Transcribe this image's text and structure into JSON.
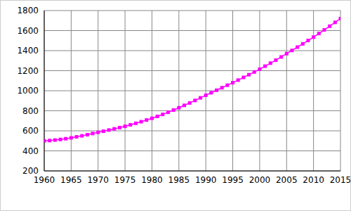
{
  "chart_data": {
    "type": "line",
    "x": [
      1960,
      1961,
      1962,
      1963,
      1964,
      1965,
      1966,
      1967,
      1968,
      1969,
      1970,
      1971,
      1972,
      1973,
      1974,
      1975,
      1976,
      1977,
      1978,
      1979,
      1980,
      1981,
      1982,
      1983,
      1984,
      1985,
      1986,
      1987,
      1988,
      1989,
      1990,
      1991,
      1992,
      1993,
      1994,
      1995,
      1996,
      1997,
      1998,
      1999,
      2000,
      2001,
      2002,
      2003,
      2004,
      2005,
      2006,
      2007,
      2008,
      2009,
      2010,
      2011,
      2012,
      2013,
      2014,
      2015
    ],
    "values": [
      500,
      503,
      508,
      514,
      521,
      530,
      540,
      550,
      561,
      573,
      585,
      596,
      608,
      620,
      632,
      645,
      660,
      675,
      691,
      708,
      725,
      744,
      764,
      785,
      807,
      830,
      854,
      878,
      903,
      929,
      955,
      980,
      1005,
      1030,
      1055,
      1080,
      1106,
      1133,
      1160,
      1187,
      1215,
      1245,
      1275,
      1305,
      1337,
      1370,
      1402,
      1435,
      1468,
      1501,
      1535,
      1571,
      1607,
      1644,
      1682,
      1720
    ],
    "color": "#ff00ff",
    "marker": "square",
    "xlim": [
      1960,
      2015
    ],
    "xticks": [
      1960,
      1965,
      1970,
      1975,
      1980,
      1985,
      1990,
      1995,
      2000,
      2005,
      2010,
      2015
    ],
    "ylim": [
      200,
      1800
    ],
    "yticks": [
      200,
      400,
      600,
      800,
      1000,
      1200,
      1400,
      1600,
      1800
    ],
    "grid": true
  }
}
